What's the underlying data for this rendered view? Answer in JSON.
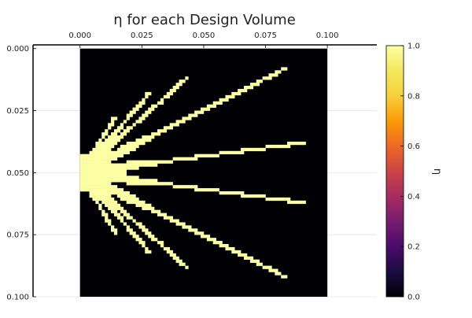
{
  "chart_data": {
    "type": "heatmap",
    "title": "η for each Design Volume",
    "x_ticks": [
      "0.000",
      "0.025",
      "0.050",
      "0.075",
      "0.100"
    ],
    "x_tick_values": [
      0.0,
      0.025,
      0.05,
      0.075,
      0.1
    ],
    "y_ticks": [
      "0.000",
      "0.025",
      "0.050",
      "0.075",
      "0.100"
    ],
    "y_tick_values": [
      0.0,
      0.025,
      0.05,
      0.075,
      0.1
    ],
    "xlim": [
      -0.019,
      0.12
    ],
    "ylim": [
      0.1,
      -0.0015
    ],
    "x_axis_position": "top",
    "y_axis_direction": "flipped",
    "grid": true,
    "colorbar": {
      "label": "η",
      "range": [
        0.0,
        1.0
      ],
      "ticks": [
        "0.0",
        "0.2",
        "0.4",
        "0.6",
        "0.8",
        "1.0"
      ],
      "tick_values": [
        0.0,
        0.2,
        0.4,
        0.6,
        0.8,
        1.0
      ],
      "colormap": "inferno"
    },
    "field": {
      "x_range": [
        0.0,
        0.1
      ],
      "y_range": [
        0.0,
        0.1
      ],
      "background_value": 0.0,
      "structure_value": 1.0,
      "segments": [
        {
          "from": [
            0.0,
            0.05
          ],
          "to": [
            0.043,
            0.012
          ]
        },
        {
          "from": [
            0.0,
            0.05
          ],
          "to": [
            0.028,
            0.018
          ]
        },
        {
          "from": [
            0.0,
            0.05
          ],
          "to": [
            0.014,
            0.028
          ]
        },
        {
          "from": [
            0.0,
            0.05
          ],
          "to": [
            0.083,
            0.008
          ]
        },
        {
          "from": [
            0.0,
            0.05
          ],
          "to": [
            0.09,
            0.038
          ]
        },
        {
          "from": [
            0.0,
            0.05
          ],
          "to": [
            0.09,
            0.062
          ]
        },
        {
          "from": [
            0.0,
            0.05
          ],
          "to": [
            0.083,
            0.092
          ]
        },
        {
          "from": [
            0.0,
            0.05
          ],
          "to": [
            0.043,
            0.088
          ]
        },
        {
          "from": [
            0.0,
            0.05
          ],
          "to": [
            0.028,
            0.082
          ]
        },
        {
          "from": [
            0.0,
            0.05
          ],
          "to": [
            0.014,
            0.074
          ]
        }
      ],
      "hub": {
        "center": [
          0.0,
          0.05
        ],
        "radius": 0.008
      }
    }
  }
}
